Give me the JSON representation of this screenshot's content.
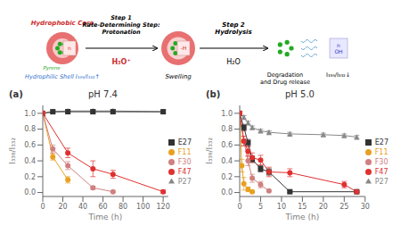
{
  "chart_data": [
    {
      "type": "diagram",
      "annotations": [
        "Hydrophobic Core",
        "Hydrophilic Shell  I₃₃₉/I₃₃₂↑",
        "Pyrene",
        "n",
        "Step 1\nRate-Determining Step:\nProtonation",
        "H₃O⁺",
        "Swelling",
        "-H",
        "Step 2\nHydrolysis",
        "H₂O",
        "Degradation\nand Drug release",
        "I₃₃₉/I₃₃₂↓",
        "n\nOH"
      ]
    },
    {
      "type": "line",
      "subtitle": "(a)",
      "title": "pH 7.4",
      "x_label": "Time (h)",
      "y_label": "I₃₃₉/I₃₃₂",
      "xlim": [
        0,
        125
      ],
      "xticks": [
        0,
        20,
        40,
        60,
        80,
        100,
        120
      ],
      "ylim": [
        -0.05,
        1.1
      ],
      "yticks": [
        {
          "value": 0.0,
          "label": "0.0"
        },
        0.2,
        0.4,
        0.6,
        0.8,
        {
          "value": 1.0,
          "label": "1.0"
        }
      ],
      "grid": false,
      "legend": "right",
      "series": [
        {
          "name": "P27",
          "color": "#888888",
          "marker": "triangle",
          "line_style": "solid",
          "x": [
            0,
            10,
            25,
            50,
            70,
            120
          ],
          "values": [
            1.0,
            1.02,
            1.03,
            1.03,
            1.03,
            1.02
          ],
          "yerr": [
            0.0,
            0.02,
            0.02,
            0.02,
            0.02,
            0.02
          ]
        },
        {
          "name": "E27",
          "color": "#333333",
          "marker": "square",
          "line_style": "solid",
          "x": [
            0,
            10,
            25,
            50,
            70,
            120
          ],
          "values": [
            1.0,
            1.02,
            1.02,
            1.02,
            1.02,
            1.02
          ],
          "yerr": [
            0.0,
            0.02,
            0.02,
            0.02,
            0.02,
            0.02
          ]
        },
        {
          "name": "F11",
          "color": "#e8a020",
          "marker": "circle",
          "line_style": "solid",
          "x": [
            0,
            10,
            25
          ],
          "values": [
            1.0,
            0.45,
            0.16
          ],
          "yerr": [
            0.0,
            0.04,
            0.04
          ]
        },
        {
          "name": "F30",
          "color": "#d08080",
          "marker": "circle",
          "line_style": "solid",
          "x": [
            0,
            10,
            25,
            50,
            70
          ],
          "values": [
            1.0,
            0.55,
            0.34,
            0.06,
            0.01
          ],
          "yerr": [
            0.0,
            0.05,
            0.05,
            0.02,
            0.01
          ]
        },
        {
          "name": "F47",
          "color": "#e03030",
          "marker": "circle",
          "line_style": "solid",
          "x": [
            0,
            25,
            50,
            70,
            120
          ],
          "values": [
            1.0,
            0.5,
            0.3,
            0.23,
            0.01
          ],
          "yerr": [
            0.0,
            0.06,
            0.1,
            0.05,
            0.02
          ]
        }
      ]
    },
    {
      "type": "line",
      "subtitle": "(b)",
      "title": "pH 5.0",
      "x_label": "Time (h)",
      "y_label": "I₃₃₉/I₃₃₂",
      "xlim": [
        0,
        30
      ],
      "xticks": [
        0,
        5,
        10,
        15,
        20,
        25,
        30
      ],
      "ylim": [
        -0.05,
        1.1
      ],
      "yticks": [
        {
          "value": 0.0,
          "label": "0.0"
        },
        0.2,
        0.4,
        0.6,
        0.8,
        {
          "value": 1.0,
          "label": "1.0"
        }
      ],
      "grid": false,
      "legend": "right",
      "series": [
        {
          "name": "P27",
          "color": "#888888",
          "marker": "triangle",
          "line_style": "solid",
          "x": [
            0,
            1,
            2,
            3,
            5,
            7,
            12,
            20,
            25,
            28
          ],
          "values": [
            1.0,
            0.95,
            0.88,
            0.82,
            0.78,
            0.76,
            0.74,
            0.73,
            0.72,
            0.7
          ],
          "yerr": [
            0.0,
            0.02,
            0.02,
            0.02,
            0.02,
            0.02,
            0.02,
            0.02,
            0.02,
            0.02
          ]
        },
        {
          "name": "E27",
          "color": "#333333",
          "marker": "square",
          "line_style": "solid",
          "x": [
            0,
            1,
            2,
            3,
            5,
            7,
            12,
            28
          ],
          "values": [
            1.0,
            0.82,
            0.63,
            0.42,
            0.3,
            0.26,
            0.01,
            0.01
          ],
          "yerr": [
            0.0,
            0.04,
            0.04,
            0.04,
            0.04,
            0.04,
            0.01,
            0.01
          ]
        },
        {
          "name": "F11",
          "color": "#e8a020",
          "marker": "circle",
          "line_style": "solid",
          "x": [
            0,
            0.5,
            1,
            2,
            3
          ],
          "values": [
            1.0,
            0.34,
            0.11,
            0.04,
            0.01
          ],
          "yerr": [
            0.0,
            0.08,
            0.08,
            0.03,
            0.01
          ]
        },
        {
          "name": "F30",
          "color": "#d08080",
          "marker": "circle",
          "line_style": "solid",
          "x": [
            0,
            1,
            2,
            3,
            5,
            7
          ],
          "values": [
            1.0,
            0.65,
            0.4,
            0.18,
            0.1,
            0.02
          ],
          "yerr": [
            0.0,
            0.06,
            0.06,
            0.05,
            0.04,
            0.01
          ]
        },
        {
          "name": "F47",
          "color": "#e03030",
          "marker": "circle",
          "line_style": "solid",
          "x": [
            0,
            1,
            2,
            3,
            5,
            7,
            12,
            25,
            28
          ],
          "values": [
            1.0,
            0.65,
            0.52,
            0.44,
            0.41,
            0.26,
            0.25,
            0.1,
            0.01
          ],
          "yerr": [
            0.0,
            0.06,
            0.06,
            0.06,
            0.06,
            0.06,
            0.05,
            0.04,
            0.01
          ]
        }
      ]
    }
  ]
}
